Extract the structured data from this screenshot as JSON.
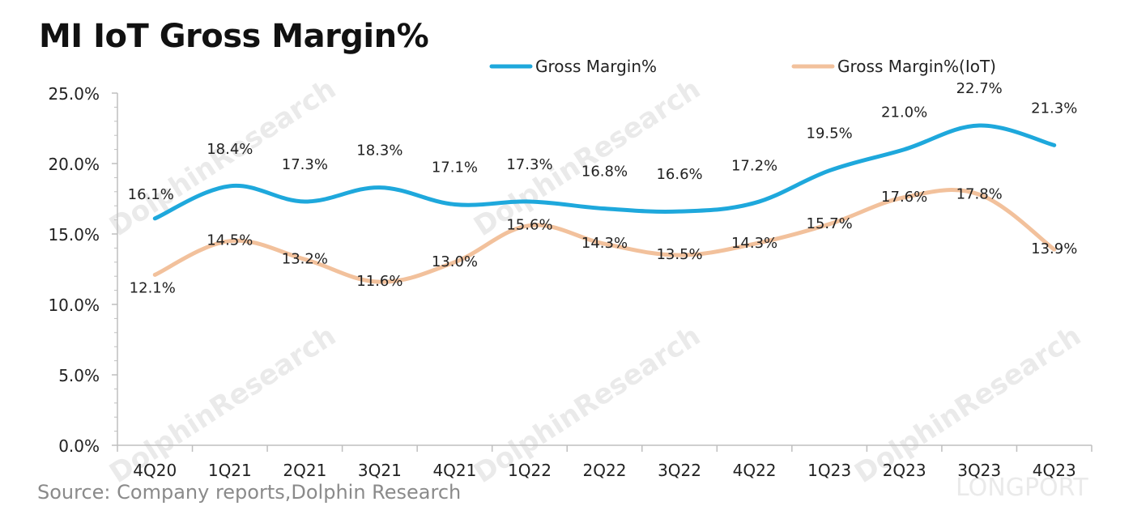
{
  "title": "MI IoT Gross Margin%",
  "source": "Source: Company reports,Dolphin Research",
  "watermark": {
    "text": "DolphinResearch",
    "brand": "LONGPORT"
  },
  "colors": {
    "series1": "#1ea8dc",
    "series2": "#f2c19c",
    "axis": "#bfbfbf",
    "text": "#222222"
  },
  "chart_data": {
    "type": "line",
    "title": "MI IoT Gross Margin%",
    "xlabel": "",
    "ylabel": "",
    "categories": [
      "4Q20",
      "1Q21",
      "2Q21",
      "3Q21",
      "4Q21",
      "1Q22",
      "2Q22",
      "3Q22",
      "4Q22",
      "1Q23",
      "2Q23",
      "3Q23",
      "4Q23"
    ],
    "ylim": [
      0,
      25
    ],
    "yticks": [
      "0.0%",
      "5.0%",
      "10.0%",
      "15.0%",
      "20.0%",
      "25.0%"
    ],
    "grid": false,
    "legend": "top",
    "series": [
      {
        "name": "Gross Margin%",
        "values": [
          16.1,
          18.4,
          17.3,
          18.3,
          17.1,
          17.3,
          16.8,
          16.6,
          17.2,
          19.5,
          21.0,
          22.7,
          21.3
        ],
        "labels": [
          "16.1%",
          "18.4%",
          "17.3%",
          "18.3%",
          "17.1%",
          "17.3%",
          "16.8%",
          "16.6%",
          "17.2%",
          "19.5%",
          "21.0%",
          "22.7%",
          "21.3%"
        ]
      },
      {
        "name": "Gross Margin%(IoT)",
        "values": [
          12.1,
          14.5,
          13.2,
          11.6,
          13.0,
          15.6,
          14.3,
          13.5,
          14.3,
          15.7,
          17.6,
          17.8,
          13.9
        ],
        "labels": [
          "12.1%",
          "14.5%",
          "13.2%",
          "11.6%",
          "13.0%",
          "15.6%",
          "14.3%",
          "13.5%",
          "14.3%",
          "15.7%",
          "17.6%",
          "17.8%",
          "13.9%"
        ]
      }
    ]
  }
}
